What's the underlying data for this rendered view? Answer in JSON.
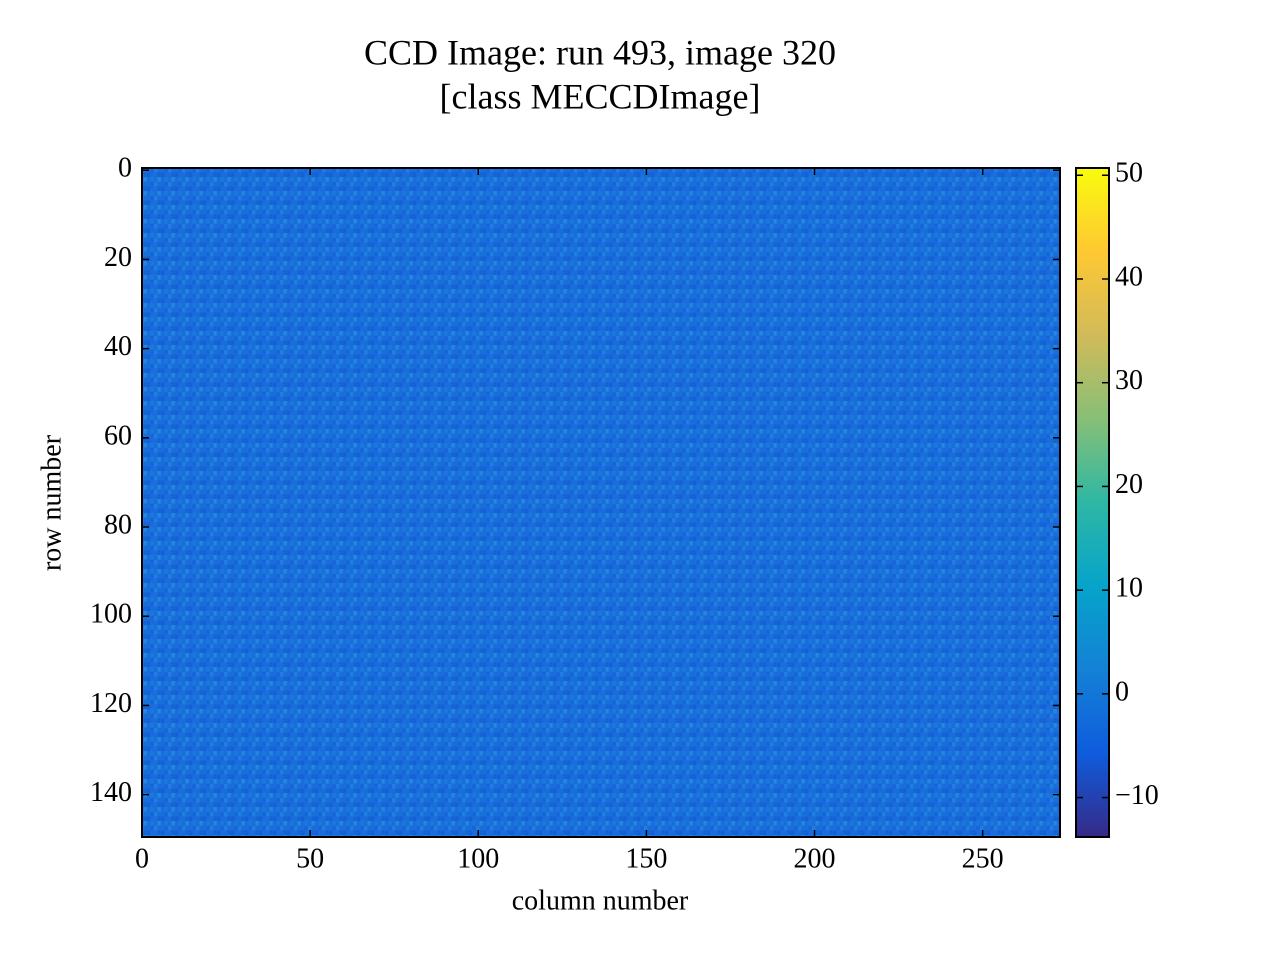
{
  "chart_data": {
    "type": "image",
    "title": "CCD Image: run 493, image 320",
    "subtitle": "[class MECCDImage]",
    "x_label": "column number",
    "y_label": "row number",
    "xlim": [
      0,
      273
    ],
    "xticks": [
      0,
      50,
      100,
      150,
      200,
      250
    ],
    "ylim": [
      149.5,
      -0.5
    ],
    "yticks": [
      0,
      20,
      40,
      60,
      80,
      100,
      120,
      140
    ],
    "colorbar": {
      "clim": [
        -13.8,
        50.7
      ],
      "cticks": [
        {
          "value": -10,
          "label": "−10"
        },
        0,
        10,
        20,
        30,
        40,
        50
      ],
      "colors": [
        "#352a87",
        "#0f5cdd",
        "#1481d6",
        "#06a4ca",
        "#2eb7a4",
        "#87bf77",
        "#d1bb59",
        "#fec832",
        "#f9fb0e"
      ]
    }
  }
}
